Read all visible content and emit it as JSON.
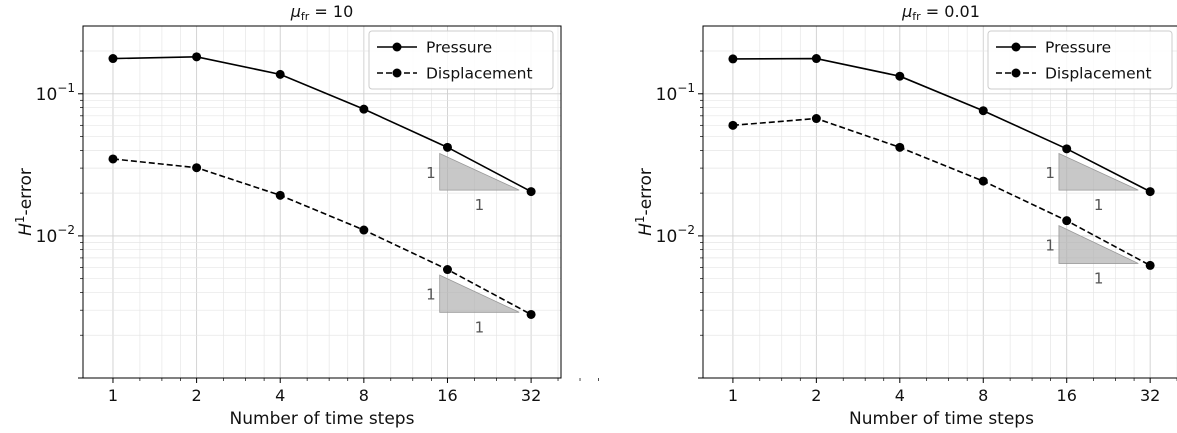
{
  "chart_data": [
    {
      "type": "line",
      "title": "μ_fr = 10",
      "title_parts": {
        "symbol": "μ",
        "subscript": "fr",
        "rest": " = 10"
      },
      "xlabel": "Number of time steps",
      "ylabel": "H¹-error",
      "ylabel_parts": {
        "base": "H",
        "sup": "1",
        "rest": "-error"
      },
      "x_scale": "log2",
      "y_scale": "log10",
      "grid": true,
      "legend_placement": "top-right",
      "x": [
        1,
        2,
        4,
        8,
        16,
        32
      ],
      "x_tick_labels": [
        "1",
        "2",
        "4",
        "8",
        "16",
        "32"
      ],
      "y_tick_labels": [
        {
          "value": 0.1,
          "base": "10",
          "exp": "−1"
        },
        {
          "value": 0.01,
          "base": "10",
          "exp": "−2"
        }
      ],
      "series": [
        {
          "name": "Pressure",
          "linestyle": "solid",
          "color": "#000000",
          "values": [
            0.177,
            0.182,
            0.137,
            0.078,
            0.042,
            0.0205
          ]
        },
        {
          "name": "Displacement",
          "linestyle": "dashed",
          "color": "#000000",
          "values": [
            0.0348,
            0.0302,
            0.0193,
            0.011,
            0.0058,
            0.0028
          ]
        }
      ],
      "slope_triangles": [
        {
          "series": "Pressure",
          "label_vertical": "1",
          "label_horizontal": "1"
        },
        {
          "series": "Displacement",
          "label_vertical": "1",
          "label_horizontal": "1"
        }
      ]
    },
    {
      "type": "line",
      "title": "μ_fr = 0.01",
      "title_parts": {
        "symbol": "μ",
        "subscript": "fr",
        "rest": " = 0.01"
      },
      "xlabel": "Number of time steps",
      "ylabel": "H¹-error",
      "ylabel_parts": {
        "base": "H",
        "sup": "1",
        "rest": "-error"
      },
      "x_scale": "log2",
      "y_scale": "log10",
      "grid": true,
      "legend_placement": "top-right",
      "x": [
        1,
        2,
        4,
        8,
        16,
        32
      ],
      "x_tick_labels": [
        "1",
        "2",
        "4",
        "8",
        "16",
        "32"
      ],
      "y_tick_labels": [
        {
          "value": 0.1,
          "base": "10",
          "exp": "−1"
        },
        {
          "value": 0.01,
          "base": "10",
          "exp": "−2"
        }
      ],
      "series": [
        {
          "name": "Pressure",
          "linestyle": "solid",
          "color": "#000000",
          "values": [
            0.176,
            0.177,
            0.133,
            0.076,
            0.041,
            0.0205
          ]
        },
        {
          "name": "Displacement",
          "linestyle": "dashed",
          "color": "#000000",
          "values": [
            0.06,
            0.067,
            0.042,
            0.0243,
            0.0128,
            0.0062
          ]
        }
      ],
      "slope_triangles": [
        {
          "series": "Pressure",
          "label_vertical": "1",
          "label_horizontal": "1"
        },
        {
          "series": "Displacement",
          "label_vertical": "1",
          "label_horizontal": "1"
        }
      ]
    }
  ]
}
